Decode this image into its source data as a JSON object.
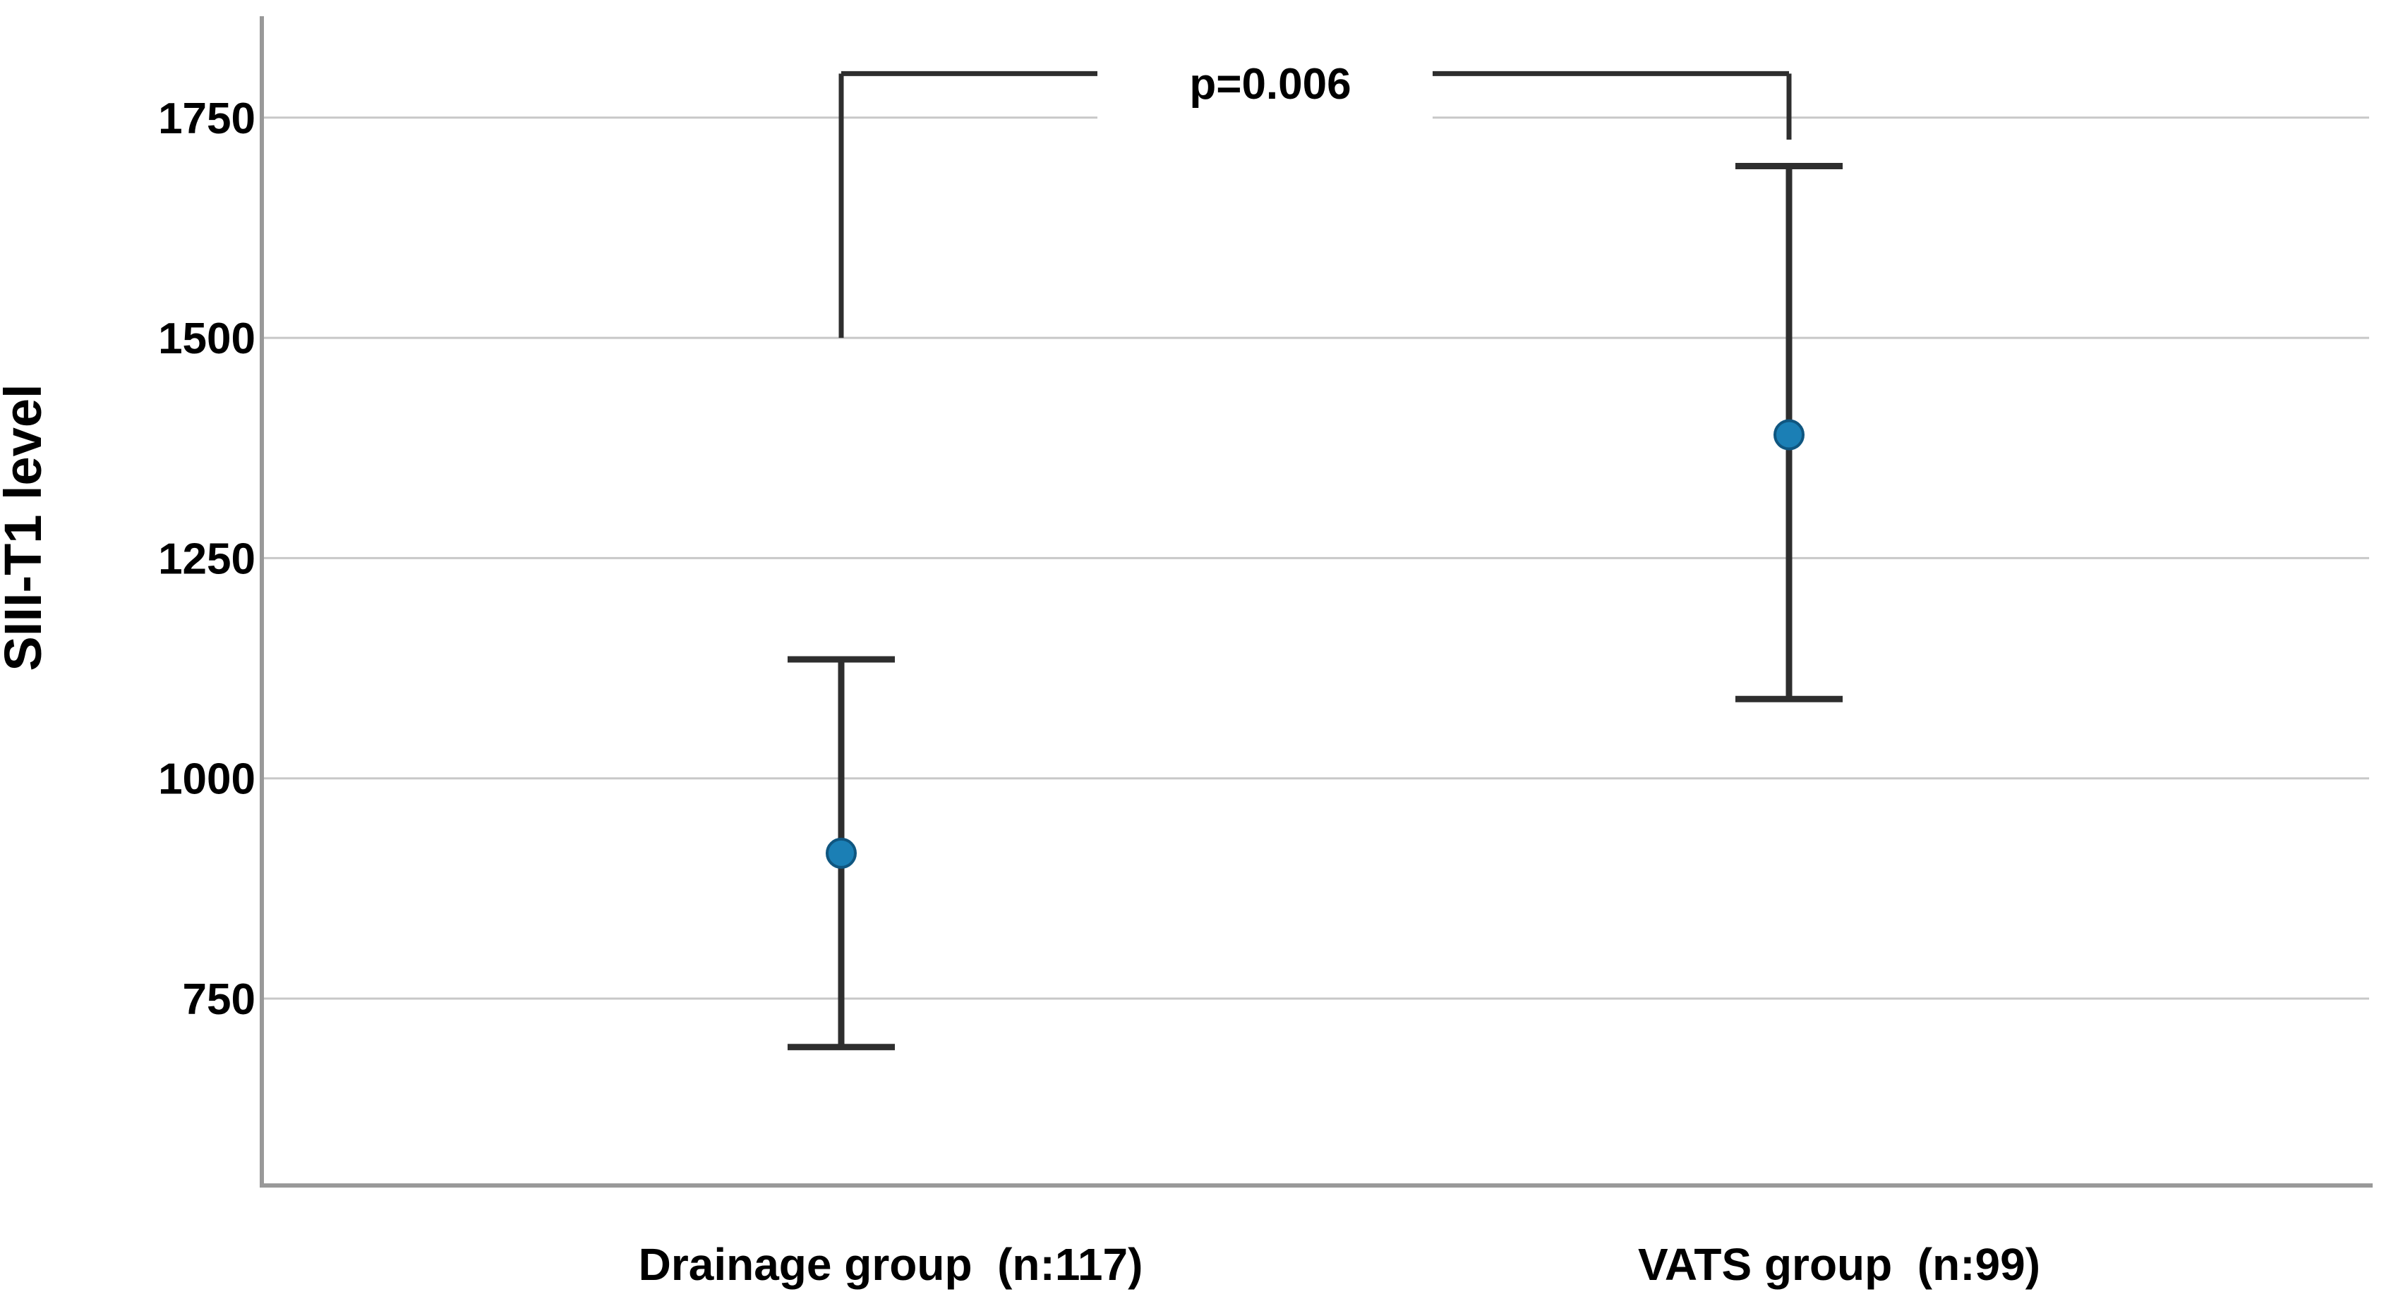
{
  "chart_data": {
    "type": "scatter",
    "subtype": "mean-with-error-bars",
    "title": "",
    "xlabel": "",
    "ylabel": "SIII-T1 level",
    "categories": [
      "Drainage group  (n:117)",
      "VATS group  (n:99)"
    ],
    "series": [
      {
        "name": "SIII-T1 level mean with error bars",
        "marker": "circle",
        "points": [
          {
            "category": "Drainage group  (n:117)",
            "mean": 915,
            "lower": 695,
            "upper": 1135
          },
          {
            "category": "VATS group  (n:99)",
            "mean": 1390,
            "lower": 1090,
            "upper": 1695
          }
        ]
      }
    ],
    "yticks": [
      750,
      1000,
      1250,
      1500,
      1750
    ],
    "ylim": [
      540,
      1865
    ],
    "grid": "horizontal-only",
    "legend_position": "none",
    "annotation": {
      "text": "p=0.006",
      "kind": "significance-bracket",
      "bracket_top_value": 1800,
      "bracket_left_bottom_value": 1500,
      "bracket_right_bottom_value": 1725
    },
    "colors": {
      "marker_fill": "#1b7fb5",
      "marker_stroke": "#0f5680",
      "error_bar": "#2e2e2e",
      "bracket": "#2e2e2e",
      "gridline": "#c8c8c8",
      "axis_line": "#999999",
      "text": "#000000",
      "background": "#ffffff"
    }
  }
}
